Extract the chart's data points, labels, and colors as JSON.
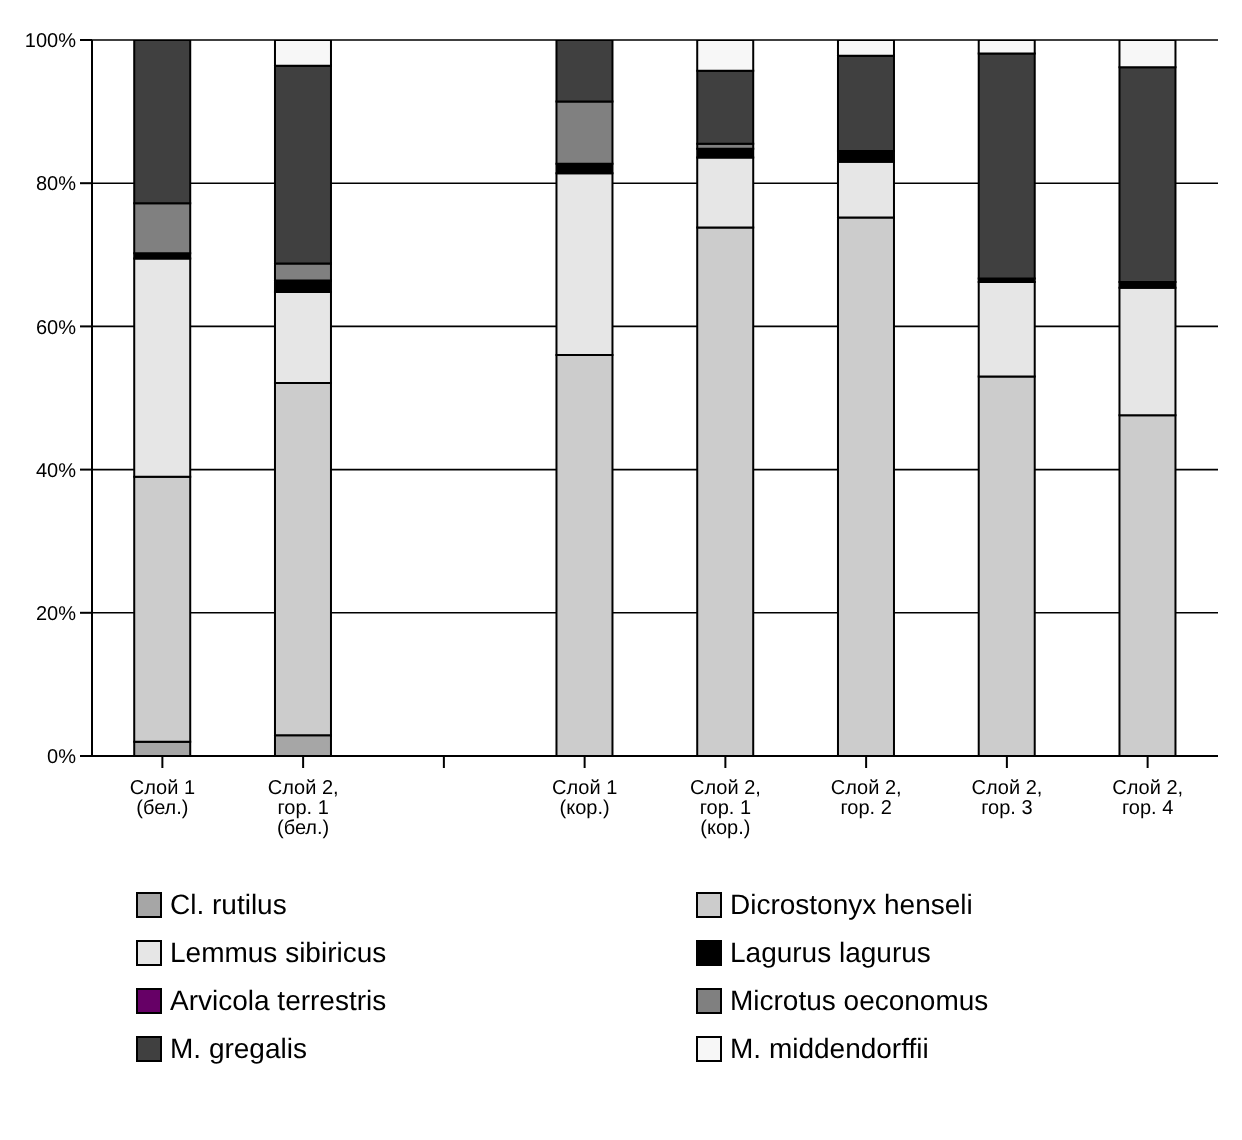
{
  "chart_data": {
    "type": "bar",
    "stacked": true,
    "categories": [
      "Слой 1 (бел.)",
      "Слой 2, гор. 1 (бел.)",
      null,
      "Слой 1 (кор.)",
      "Слой 2, гор. 1 (кор.)",
      "Слой 2, гор. 2",
      "Слой 2, гор. 3",
      "Слой 2, гор. 4"
    ],
    "series": [
      {
        "name": "Cl. rutilus",
        "color": "#a6a6a6",
        "values": [
          2,
          2.9,
          null,
          0,
          0,
          0,
          0,
          0
        ]
      },
      {
        "name": "Dicrostonyx henseli",
        "color": "#cccccc",
        "values": [
          37,
          49.2,
          null,
          56,
          73.8,
          75.2,
          53,
          47.6
        ]
      },
      {
        "name": "Lemmus sibiricus",
        "color": "#e6e6e6",
        "values": [
          30.5,
          12.7,
          null,
          25.4,
          9.8,
          7.8,
          13.2,
          17.8
        ]
      },
      {
        "name": "Lagurus lagurus",
        "color": "#000000",
        "values": [
          0.7,
          1.6,
          null,
          1.3,
          1.2,
          1.5,
          0.5,
          0.8
        ]
      },
      {
        "name": "Arvicola terrestris",
        "color": "#660066",
        "values": [
          0,
          0,
          null,
          0,
          0,
          0,
          0,
          0
        ]
      },
      {
        "name": "Microtus oeconomus",
        "color": "#808080",
        "values": [
          7,
          2.4,
          null,
          8.7,
          0.7,
          0,
          0,
          0
        ]
      },
      {
        "name": "M. gregalis",
        "color": "#404040",
        "values": [
          22.8,
          27.6,
          null,
          8.6,
          10.2,
          13.3,
          31.4,
          30
        ]
      },
      {
        "name": "M. middendorffii",
        "color": "#f7f7f7",
        "values": [
          0,
          3.6,
          null,
          0,
          4.3,
          2.2,
          1.9,
          3.8
        ]
      }
    ],
    "ylim": [
      0,
      100
    ],
    "yticks": [
      {
        "value": 0,
        "label": "0%"
      },
      {
        "value": 20,
        "label": "20%"
      },
      {
        "value": 40,
        "label": "40%"
      },
      {
        "value": 60,
        "label": "60%"
      },
      {
        "value": 80,
        "label": "80%"
      },
      {
        "value": 100,
        "label": "100%"
      }
    ],
    "grid": "y",
    "legend": "bottom"
  }
}
